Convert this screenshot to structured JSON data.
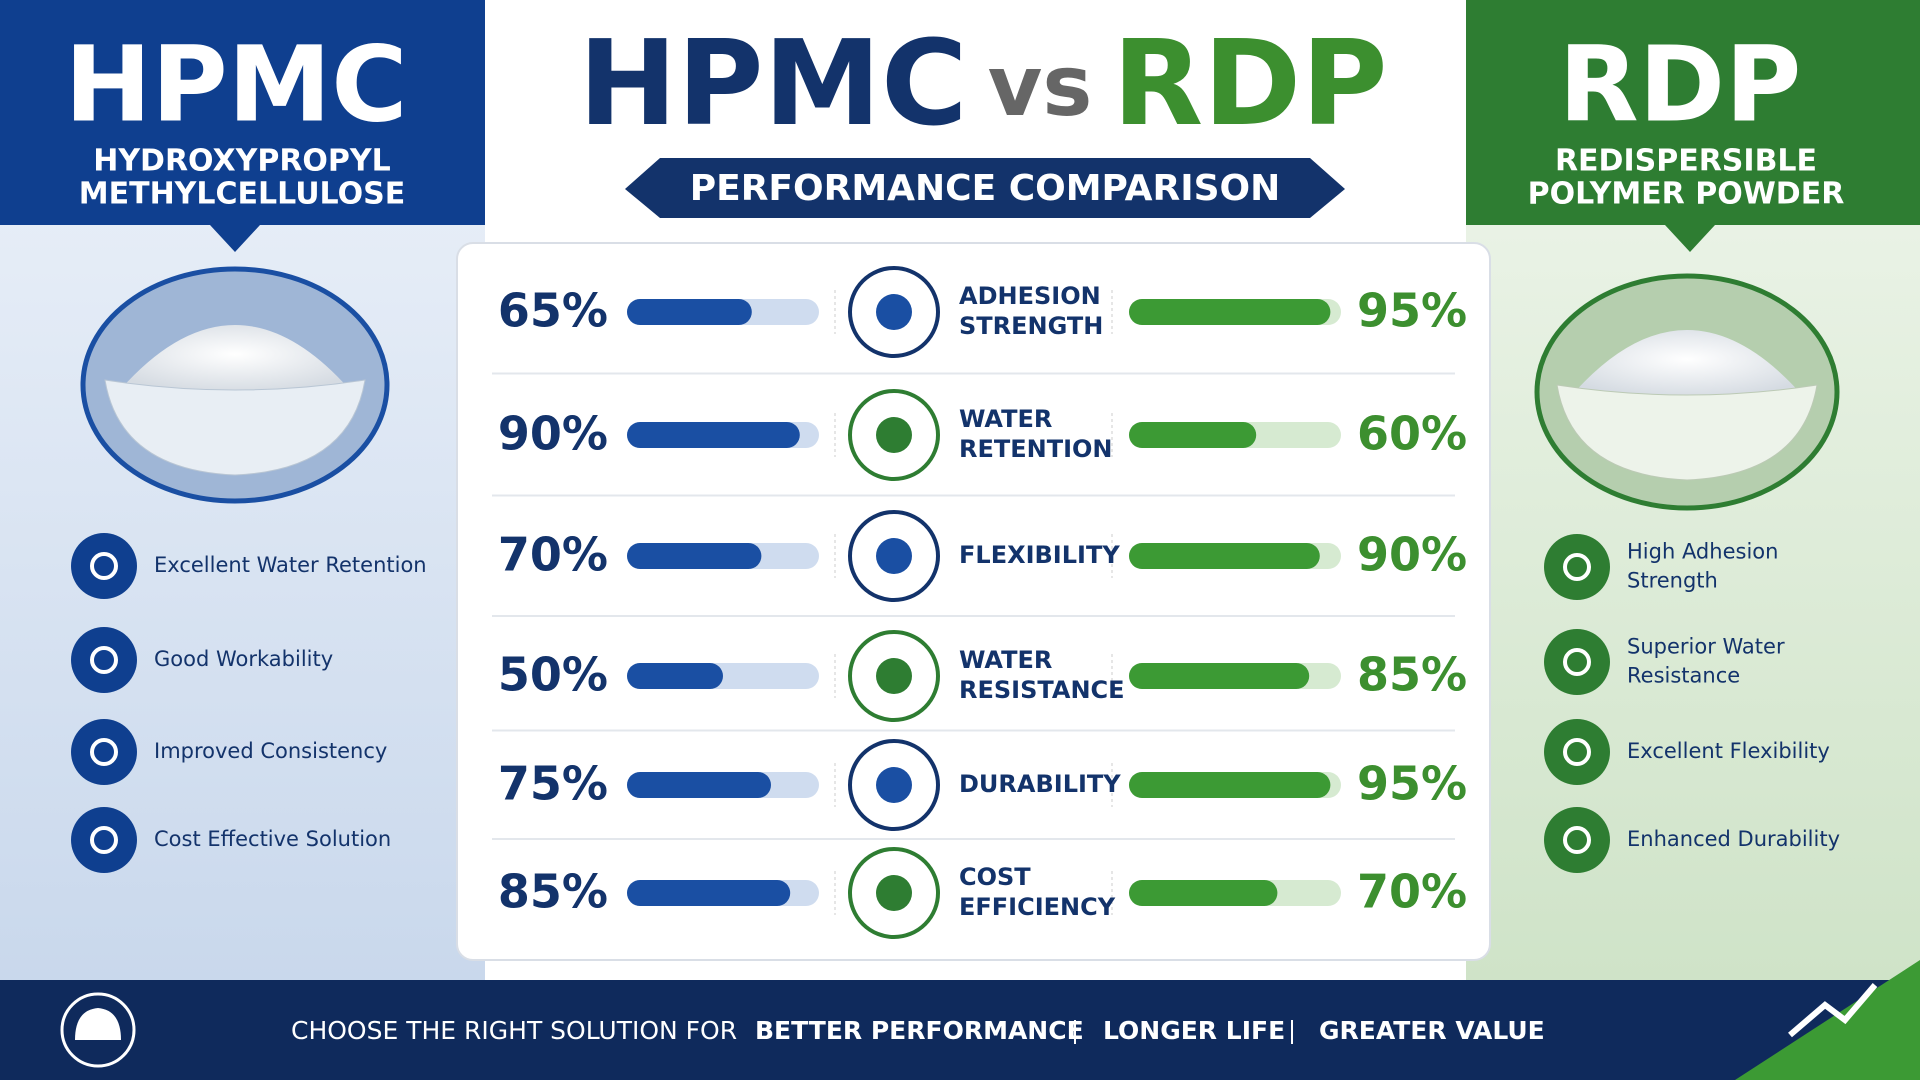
{
  "header": {
    "title_left": "HPMC",
    "title_vs": "vs",
    "title_right": "RDP",
    "subtitle": "PERFORMANCE COMPARISON"
  },
  "left": {
    "title": "HPMC",
    "subtitle_lines": [
      "HYDROXYPROPYL",
      "METHYLCELLULOSE"
    ],
    "features": [
      [
        "Excellent Water Retention"
      ],
      [
        "Good Workability"
      ],
      [
        "Improved Consistency"
      ],
      [
        "Cost Effective Solution"
      ]
    ]
  },
  "right": {
    "title": "RDP",
    "subtitle_lines": [
      "REDISPERSIBLE",
      "POLYMER POWDER"
    ],
    "features": [
      [
        "High Adhesion",
        "Strength"
      ],
      [
        "Superior Water",
        "Resistance"
      ],
      [
        "Excellent Flexibility"
      ],
      [
        "Enhanced Durability"
      ]
    ]
  },
  "comparison": {
    "xlim": [
      0,
      100
    ],
    "categories": [
      [
        "ADHESION",
        "STRENGTH"
      ],
      [
        "WATER",
        "RETENTION"
      ],
      [
        "FLEXIBILITY"
      ],
      [
        "WATER",
        "RESISTANCE"
      ],
      [
        "DURABILITY"
      ],
      [
        "COST",
        "EFFICIENCY"
      ]
    ],
    "hpmc": {
      "color": "#1a4fa3",
      "values": [
        65,
        90,
        70,
        50,
        75,
        85
      ],
      "value_labels": [
        "65%",
        "90%",
        "70%",
        "50%",
        "75%",
        "85%"
      ]
    },
    "rdp": {
      "color": "#3c9a34",
      "values": [
        95,
        60,
        90,
        85,
        95,
        70
      ],
      "value_labels": [
        "95%",
        "60%",
        "90%",
        "85%",
        "95%",
        "70%"
      ]
    }
  },
  "footer": {
    "lead": "CHOOSE THE RIGHT SOLUTION FOR",
    "items": [
      "BETTER PERFORMANCE",
      "LONGER LIFE",
      "GREATER VALUE"
    ]
  }
}
